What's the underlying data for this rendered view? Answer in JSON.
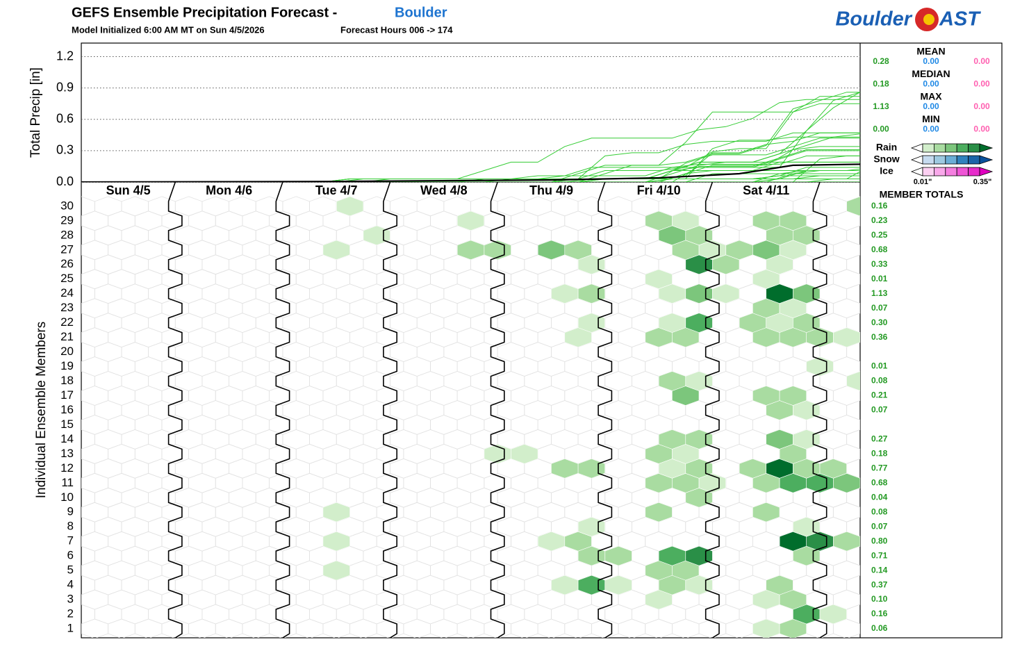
{
  "logo": {
    "left": "Boulder",
    "right": "AST"
  },
  "chart_data": {
    "type": "ensemble-hex",
    "title": "GEFS Ensemble Precipitation Forecast -",
    "location": "Boulder",
    "subtitle": "Model Initialized 6:00 AM MT on Sun 4/5/2026",
    "forecast_hours": "Forecast Hours 006 -> 174",
    "ylabel": "Total Precip [in]",
    "members_label": "Individual Ensemble Members",
    "xlim": [
      -3,
      171
    ],
    "ylim": [
      0,
      1.33
    ],
    "yticks": [
      {
        "value": 0,
        "label": "0.0"
      },
      0.3,
      0.6,
      0.9,
      1.2
    ],
    "grid": true,
    "line_color": "#33cc33",
    "days": [
      "Sun 4/5",
      "Mon 4/6",
      "Tue 4/7",
      "Wed 4/8",
      "Thu 4/9",
      "Fri 4/10",
      "Sat 4/11"
    ],
    "mean_line": {
      "color": "#000000",
      "x": [
        -3,
        54,
        102,
        126,
        144,
        156,
        171
      ],
      "values": [
        0,
        0.005,
        0.02,
        0.04,
        0.08,
        0.16,
        0.17
      ]
    },
    "members": [
      {
        "name": "1",
        "hexes": [
          [
            150,
            0.03
          ],
          [
            156,
            0.08
          ]
        ],
        "total": 0.06
      },
      {
        "name": "2",
        "hexes": [
          [
            159,
            0.22
          ],
          [
            165,
            0.03
          ]
        ],
        "total": 0.16
      },
      {
        "name": "3",
        "hexes": [
          [
            126,
            0.03
          ],
          [
            150,
            0.03
          ],
          [
            156,
            0.08
          ]
        ],
        "total": 0.1,
        "total_label": "0.10"
      },
      {
        "name": "4",
        "hexes": [
          [
            105,
            0.03
          ],
          [
            111,
            0.22
          ],
          [
            117,
            0.03
          ],
          [
            129,
            0.08
          ],
          [
            135,
            0.03
          ],
          [
            153,
            0.08
          ]
        ],
        "total": 0.37
      },
      {
        "name": "5",
        "hexes": [
          [
            54,
            0.03
          ],
          [
            126,
            0.08
          ],
          [
            132,
            0.08
          ]
        ],
        "total": 0.14
      },
      {
        "name": "6",
        "hexes": [
          [
            111,
            0.08
          ],
          [
            117,
            0.08
          ],
          [
            129,
            0.22
          ],
          [
            135,
            0.29
          ],
          [
            159,
            0.08
          ]
        ],
        "total": 0.71
      },
      {
        "name": "7",
        "hexes": [
          [
            54,
            0.03
          ],
          [
            102,
            0.03
          ],
          [
            108,
            0.08
          ],
          [
            156,
            0.35
          ],
          [
            162,
            0.29
          ],
          [
            168,
            0.08
          ]
        ],
        "total": 0.8,
        "total_label": "0.80"
      },
      {
        "name": "8",
        "hexes": [
          [
            111,
            0.03
          ],
          [
            159,
            0.03
          ]
        ],
        "total": 0.07
      },
      {
        "name": "9",
        "hexes": [
          [
            54,
            0.03
          ],
          [
            126,
            0.08
          ],
          [
            150,
            0.08
          ]
        ],
        "total": 0.08
      },
      {
        "name": "10",
        "hexes": [
          [
            135,
            0.08
          ]
        ],
        "total": 0.04
      },
      {
        "name": "11",
        "hexes": [
          [
            126,
            0.08
          ],
          [
            132,
            0.08
          ],
          [
            138,
            0.03
          ],
          [
            150,
            0.08
          ],
          [
            156,
            0.22
          ],
          [
            162,
            0.22
          ],
          [
            168,
            0.15
          ]
        ],
        "total": 0.68
      },
      {
        "name": "12",
        "hexes": [
          [
            105,
            0.08
          ],
          [
            111,
            0.08
          ],
          [
            129,
            0.03
          ],
          [
            135,
            0.08
          ],
          [
            147,
            0.08
          ],
          [
            153,
            0.35
          ],
          [
            159,
            0.08
          ],
          [
            165,
            0.08
          ]
        ],
        "total": 0.77
      },
      {
        "name": "13",
        "hexes": [
          [
            90,
            0.03
          ],
          [
            96,
            0.03
          ],
          [
            126,
            0.08
          ],
          [
            132,
            0.03
          ],
          [
            156,
            0.08
          ]
        ],
        "total": 0.18
      },
      {
        "name": "14",
        "hexes": [
          [
            129,
            0.08
          ],
          [
            135,
            0.08
          ],
          [
            153,
            0.15
          ],
          [
            159,
            0.03
          ]
        ],
        "total": 0.27
      },
      {
        "name": "15",
        "hexes": [],
        "total": null
      },
      {
        "name": "16",
        "hexes": [
          [
            153,
            0.08
          ],
          [
            159,
            0.03
          ]
        ],
        "total": 0.07
      },
      {
        "name": "17",
        "hexes": [
          [
            132,
            0.15
          ],
          [
            150,
            0.08
          ],
          [
            156,
            0.08
          ]
        ],
        "total": 0.21
      },
      {
        "name": "18",
        "hexes": [
          [
            129,
            0.08
          ],
          [
            135,
            0.03
          ],
          [
            171,
            0.03
          ]
        ],
        "total": 0.08
      },
      {
        "name": "19",
        "hexes": [
          [
            162,
            0.03
          ]
        ],
        "total": 0.01
      },
      {
        "name": "20",
        "hexes": [],
        "total": null
      },
      {
        "name": "21",
        "hexes": [
          [
            108,
            0.03
          ],
          [
            126,
            0.08
          ],
          [
            132,
            0.08
          ],
          [
            150,
            0.08
          ],
          [
            156,
            0.08
          ],
          [
            162,
            0.08
          ],
          [
            168,
            0.03
          ]
        ],
        "total": 0.36
      },
      {
        "name": "22",
        "hexes": [
          [
            111,
            0.03
          ],
          [
            129,
            0.03
          ],
          [
            135,
            0.22
          ],
          [
            147,
            0.08
          ],
          [
            153,
            0.03
          ],
          [
            159,
            0.08
          ]
        ],
        "total": 0.3,
        "total_label": "0.30"
      },
      {
        "name": "23",
        "hexes": [
          [
            150,
            0.08
          ],
          [
            156,
            0.03
          ]
        ],
        "total": 0.07
      },
      {
        "name": "24",
        "hexes": [
          [
            105,
            0.03
          ],
          [
            111,
            0.08
          ],
          [
            129,
            0.03
          ],
          [
            135,
            0.15
          ],
          [
            141,
            0.03
          ],
          [
            153,
            0.35
          ],
          [
            159,
            0.15
          ]
        ],
        "total": 1.13
      },
      {
        "name": "25",
        "hexes": [
          [
            126,
            0.03
          ],
          [
            150,
            0.03
          ]
        ],
        "total": 0.01
      },
      {
        "name": "26",
        "hexes": [
          [
            111,
            0.03
          ],
          [
            135,
            0.29
          ],
          [
            141,
            0.08
          ],
          [
            153,
            0.03
          ]
        ],
        "total": 0.33
      },
      {
        "name": "27",
        "hexes": [
          [
            54,
            0.03
          ],
          [
            84,
            0.08
          ],
          [
            90,
            0.08
          ],
          [
            102,
            0.15
          ],
          [
            108,
            0.08
          ],
          [
            132,
            0.08
          ],
          [
            138,
            0.03
          ],
          [
            144,
            0.08
          ],
          [
            150,
            0.15
          ],
          [
            156,
            0.03
          ]
        ],
        "total": 0.68
      },
      {
        "name": "28",
        "hexes": [
          [
            63,
            0.03
          ],
          [
            129,
            0.15
          ],
          [
            135,
            0.08
          ],
          [
            153,
            0.08
          ],
          [
            159,
            0.08
          ]
        ],
        "total": 0.25
      },
      {
        "name": "29",
        "hexes": [
          [
            84,
            0.03
          ],
          [
            126,
            0.08
          ],
          [
            132,
            0.03
          ],
          [
            150,
            0.08
          ],
          [
            156,
            0.08
          ]
        ],
        "total": 0.23
      },
      {
        "name": "30",
        "hexes": [
          [
            57,
            0.03
          ],
          [
            171,
            0.14
          ]
        ],
        "total": 0.16
      }
    ],
    "stat_colors": [
      "#229922",
      "#1e88e5",
      "#ff5fb0"
    ],
    "stats": [
      {
        "label": "MEAN",
        "values": [
          0.28,
          0,
          0
        ],
        "value_labels": [
          "0.28",
          "0.00",
          "0.00"
        ]
      },
      {
        "label": "MEDIAN",
        "values": [
          0.18,
          0,
          0
        ],
        "value_labels": [
          "0.18",
          "0.00",
          "0.00"
        ]
      },
      {
        "label": "MAX",
        "values": [
          1.13,
          0,
          0
        ],
        "value_labels": [
          "1.13",
          "0.00",
          "0.00"
        ]
      },
      {
        "label": "MIN",
        "values": [
          0,
          0,
          0
        ],
        "value_labels": [
          "0.00",
          "0.00",
          "0.00"
        ]
      }
    ],
    "legend": {
      "types": [
        "Rain",
        "Snow",
        "Ice"
      ],
      "colors": [
        [
          "#d2eecb",
          "#a9dca1",
          "#7cc67c",
          "#4cae5f",
          "#2a8f47",
          "#006d2c"
        ],
        [
          "#c6dbef",
          "#9ecae1",
          "#6baed6",
          "#3182bd",
          "#1c64a8",
          "#08519c"
        ],
        [
          "#fcd0f2",
          "#f9a8ea",
          "#f57fe0",
          "#ef55d6",
          "#e72ccb",
          "#e000c0"
        ]
      ],
      "min": {
        "value": 0.01,
        "label": "0.01\""
      },
      "max": {
        "value": 0.35,
        "label": "0.35\""
      }
    },
    "totals_title": "MEMBER TOTALS"
  }
}
